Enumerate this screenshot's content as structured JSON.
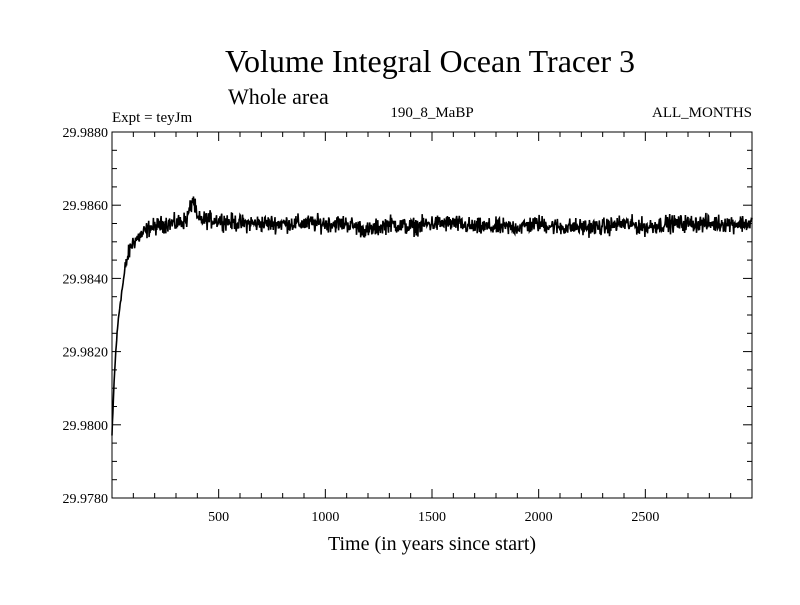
{
  "chart_data": {
    "type": "line",
    "title": "Volume Integral Ocean Tracer 3",
    "subtitle": "Whole area",
    "corner_left": "Expt = teyJm",
    "corner_center": "190_8_MaBP",
    "corner_right": "ALL_MONTHS",
    "xlabel": "Time (in years since start)",
    "ylabel": "",
    "xlim": [
      0,
      3000
    ],
    "ylim": [
      29.978,
      29.988
    ],
    "xticks": [
      500,
      1000,
      1500,
      2000,
      2500
    ],
    "xtick_labels": [
      "500",
      "1000",
      "1500",
      "2000",
      "2500"
    ],
    "yticks": [
      29.978,
      29.98,
      29.982,
      29.984,
      29.986,
      29.988
    ],
    "ytick_labels": [
      "29.9780",
      "29.9800",
      "29.9820",
      "29.9840",
      "29.9860",
      "29.9880"
    ],
    "grid": false,
    "line_color": "#000000",
    "series": [
      {
        "x": [
          0,
          10,
          20,
          30,
          40,
          50,
          60,
          70,
          80,
          90,
          100,
          120,
          140,
          160,
          180,
          200,
          250,
          300,
          350,
          380,
          400,
          450,
          500,
          600,
          700,
          800,
          900,
          1000,
          1100,
          1200,
          1300,
          1400,
          1500,
          1600,
          1700,
          1800,
          1900,
          2000,
          2100,
          2200,
          2300,
          2400,
          2500,
          2600,
          2700,
          2800,
          2900,
          3000
        ],
        "values": [
          29.9797,
          29.9812,
          29.9822,
          29.9829,
          29.9834,
          29.9838,
          29.9842,
          29.9845,
          29.9847,
          29.9849,
          29.985,
          29.9851,
          29.9852,
          29.9853,
          29.9854,
          29.9854,
          29.9855,
          29.9855,
          29.9856,
          29.9862,
          29.9856,
          29.9856,
          29.9856,
          29.9855,
          29.9855,
          29.9855,
          29.9855,
          29.9855,
          29.9855,
          29.9853,
          29.9855,
          29.9854,
          29.9855,
          29.9855,
          29.9854,
          29.9854,
          29.9854,
          29.9855,
          29.9854,
          29.9854,
          29.9854,
          29.9855,
          29.9854,
          29.9855,
          29.9855,
          29.9855,
          29.9855,
          29.9855
        ],
        "noise_amplitude": 0.00035
      }
    ]
  }
}
